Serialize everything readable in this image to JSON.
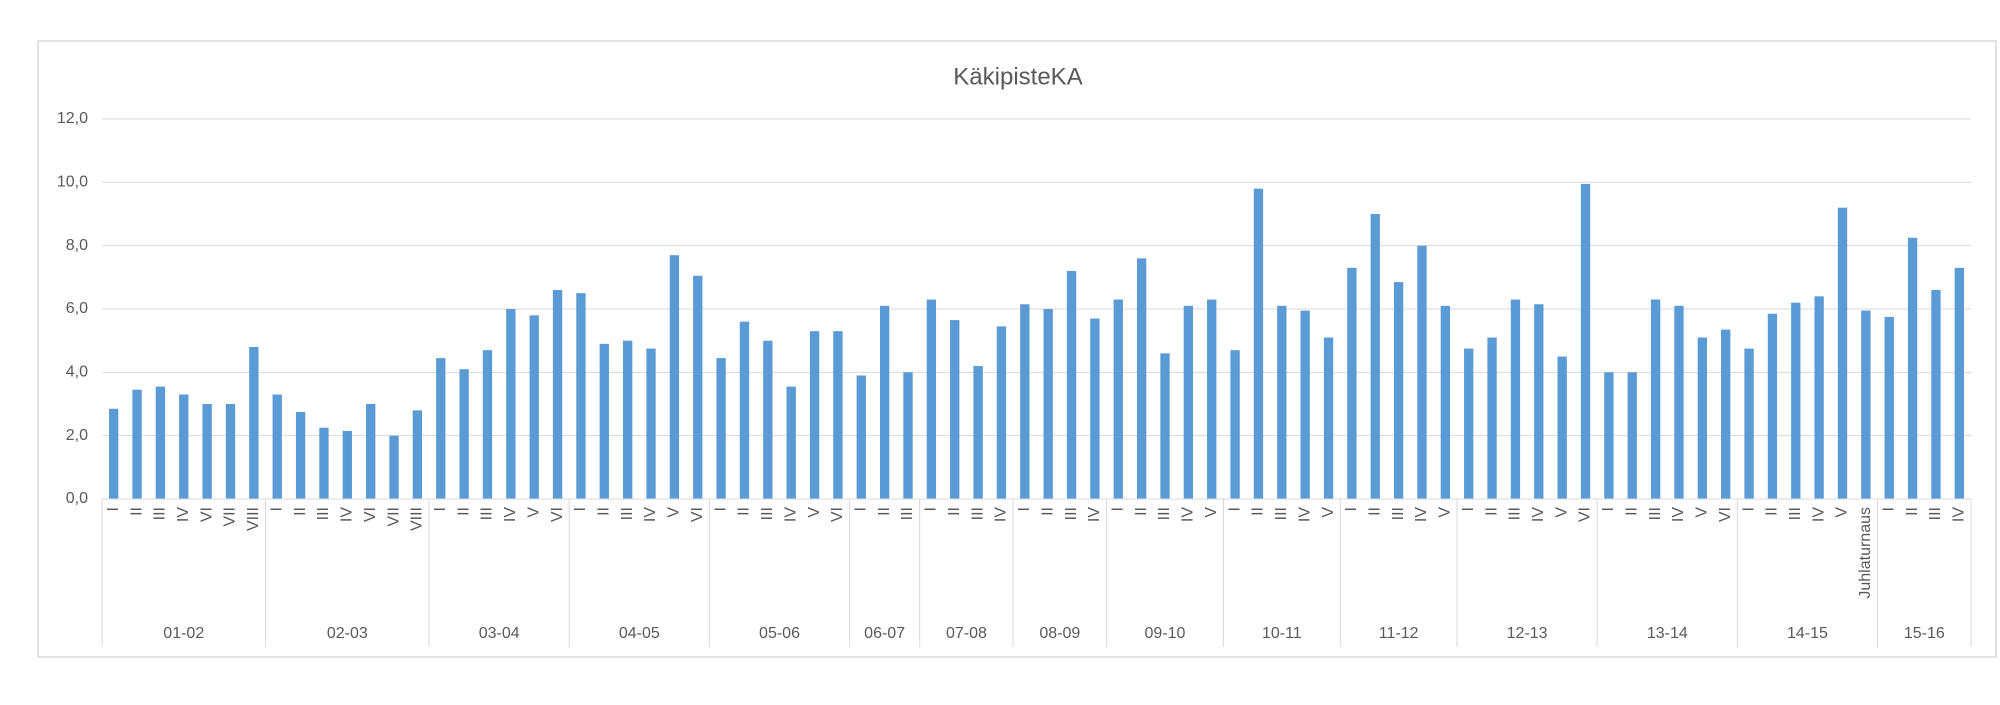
{
  "chart_data": {
    "type": "bar",
    "title": "KäkipisteKA",
    "color": "#5b9bd5",
    "grid": true,
    "ylim": [
      0,
      12
    ],
    "yticks": [
      {
        "value": 0,
        "label": "0,0"
      },
      {
        "value": 2,
        "label": "2,0"
      },
      {
        "value": 4,
        "label": "4,0"
      },
      {
        "value": 6,
        "label": "6,0"
      },
      {
        "value": 8,
        "label": "8,0"
      },
      {
        "value": 10,
        "label": "10,0"
      },
      {
        "value": 12,
        "label": "12,0"
      }
    ],
    "groups": [
      {
        "name": "01-02",
        "categories": [
          "I",
          "II",
          "III",
          "IV",
          "VI",
          "VII",
          "VIII"
        ],
        "values": [
          2.85,
          3.45,
          3.55,
          3.3,
          3.0,
          3.0,
          4.8
        ]
      },
      {
        "name": "02-03",
        "categories": [
          "I",
          "II",
          "III",
          "IV",
          "VI",
          "VII",
          "VIII"
        ],
        "values": [
          3.3,
          2.75,
          2.25,
          2.15,
          3.0,
          2.0,
          2.8
        ]
      },
      {
        "name": "03-04",
        "categories": [
          "I",
          "II",
          "III",
          "IV",
          "V",
          "VI"
        ],
        "values": [
          4.45,
          4.1,
          4.7,
          6.0,
          5.8,
          6.6
        ]
      },
      {
        "name": "04-05",
        "categories": [
          "I",
          "II",
          "III",
          "IV",
          "V",
          "VI"
        ],
        "values": [
          6.5,
          4.9,
          5.0,
          4.75,
          7.7,
          7.05
        ]
      },
      {
        "name": "05-06",
        "categories": [
          "I",
          "II",
          "III",
          "IV",
          "V",
          "VI"
        ],
        "values": [
          4.45,
          5.6,
          5.0,
          3.55,
          5.3,
          5.3
        ]
      },
      {
        "name": "06-07",
        "categories": [
          "I",
          "II",
          "III"
        ],
        "values": [
          3.9,
          6.1,
          4.0
        ]
      },
      {
        "name": "07-08",
        "categories": [
          "I",
          "II",
          "III",
          "IV"
        ],
        "values": [
          6.3,
          5.65,
          4.2,
          5.45
        ]
      },
      {
        "name": "08-09",
        "categories": [
          "I",
          "II",
          "III",
          "IV"
        ],
        "values": [
          6.15,
          6.0,
          7.2,
          5.7
        ]
      },
      {
        "name": "09-10",
        "categories": [
          "I",
          "II",
          "III",
          "IV",
          "V"
        ],
        "values": [
          6.3,
          7.6,
          4.6,
          6.1,
          6.3
        ]
      },
      {
        "name": "10-11",
        "categories": [
          "I",
          "II",
          "III",
          "IV",
          "V"
        ],
        "values": [
          4.7,
          9.8,
          6.1,
          5.95,
          5.1
        ]
      },
      {
        "name": "11-12",
        "categories": [
          "I",
          "II",
          "III",
          "IV",
          "V"
        ],
        "values": [
          7.3,
          9.0,
          6.85,
          8.0,
          6.1
        ]
      },
      {
        "name": "12-13",
        "categories": [
          "I",
          "II",
          "III",
          "IV",
          "V",
          "VI"
        ],
        "values": [
          4.75,
          5.1,
          6.3,
          6.15,
          4.5,
          9.95
        ]
      },
      {
        "name": "13-14",
        "categories": [
          "I",
          "II",
          "III",
          "IV",
          "V",
          "VI"
        ],
        "values": [
          4.0,
          4.0,
          6.3,
          6.1,
          5.1,
          5.35
        ]
      },
      {
        "name": "14-15",
        "categories": [
          "I",
          "II",
          "III",
          "IV",
          "V",
          "Juhlaturnaus"
        ],
        "values": [
          4.75,
          5.85,
          6.2,
          6.4,
          9.2,
          5.95
        ]
      },
      {
        "name": "15-16",
        "categories": [
          "I",
          "II",
          "III",
          "IV"
        ],
        "values": [
          5.75,
          8.25,
          6.6,
          7.3
        ]
      }
    ]
  }
}
